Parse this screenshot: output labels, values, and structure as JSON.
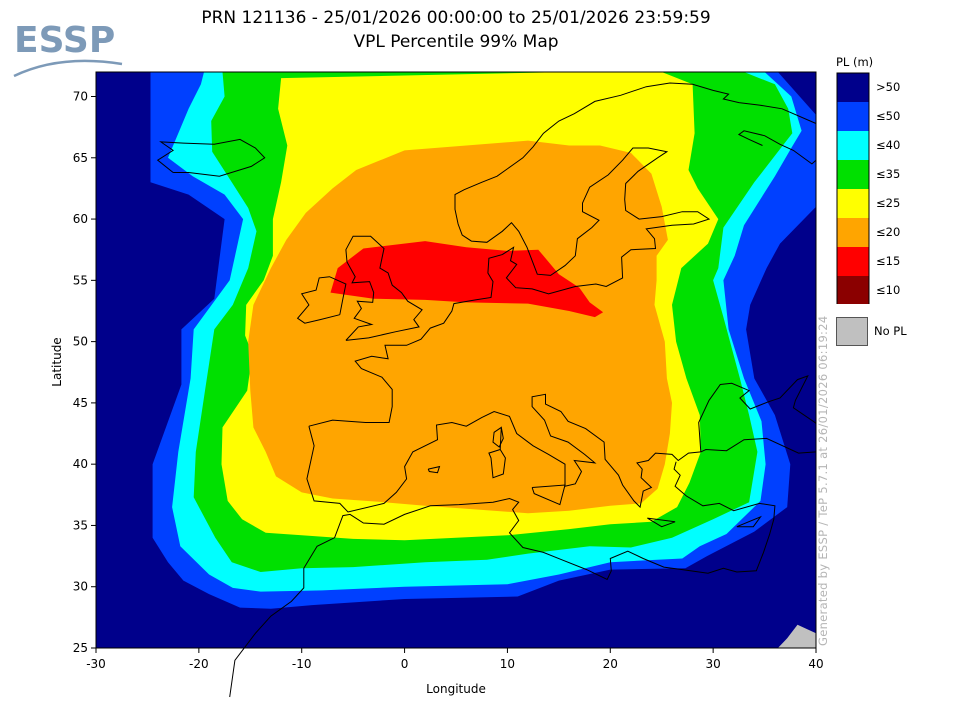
{
  "header": {
    "logo_text": "ESSP",
    "title_line1": "PRN 121136 - 25/01/2026 00:00:00 to 25/01/2026 23:59:59",
    "title_line2": "VPL Percentile 99% Map"
  },
  "credit": "Generated by ESSP / TeP 5.7.1 at 26/01/2026 06:19:24",
  "map": {
    "x_axis_label": "Longitude",
    "y_axis_label": "Latitude",
    "lon_range": [
      -30,
      40
    ],
    "lat_range": [
      25,
      72
    ],
    "lon_ticks": [
      -30,
      -20,
      -10,
      0,
      10,
      20,
      30,
      40
    ],
    "lat_ticks": [
      25,
      30,
      35,
      40,
      45,
      50,
      55,
      60,
      65,
      70
    ],
    "background_color": "#00008b",
    "zones": [
      {
        "level": ">50",
        "color": "#00008b"
      },
      {
        "level": "≤50",
        "color": "#0040ff"
      },
      {
        "level": "≤40",
        "color": "#00ffff"
      },
      {
        "level": "≤35",
        "color": "#00e000"
      },
      {
        "level": "≤25",
        "color": "#ffff00"
      },
      {
        "level": "≤20",
        "color": "#ffa500"
      },
      {
        "level": "≤15",
        "color": "#ff0000"
      },
      {
        "level": "≤10",
        "color": "#8b0000"
      }
    ]
  },
  "legend": {
    "title": "PL (m)",
    "items": [
      {
        "label": ">50",
        "color": "#00008b"
      },
      {
        "label": "≤50",
        "color": "#0040ff"
      },
      {
        "label": "≤40",
        "color": "#00ffff"
      },
      {
        "label": "≤35",
        "color": "#00e000"
      },
      {
        "label": "≤25",
        "color": "#ffff00"
      },
      {
        "label": "≤20",
        "color": "#ffa500"
      },
      {
        "label": "≤15",
        "color": "#ff0000"
      },
      {
        "label": "≤10",
        "color": "#8b0000"
      }
    ],
    "no_pl_label": "No PL",
    "no_pl_color": "#c0c0c0"
  }
}
